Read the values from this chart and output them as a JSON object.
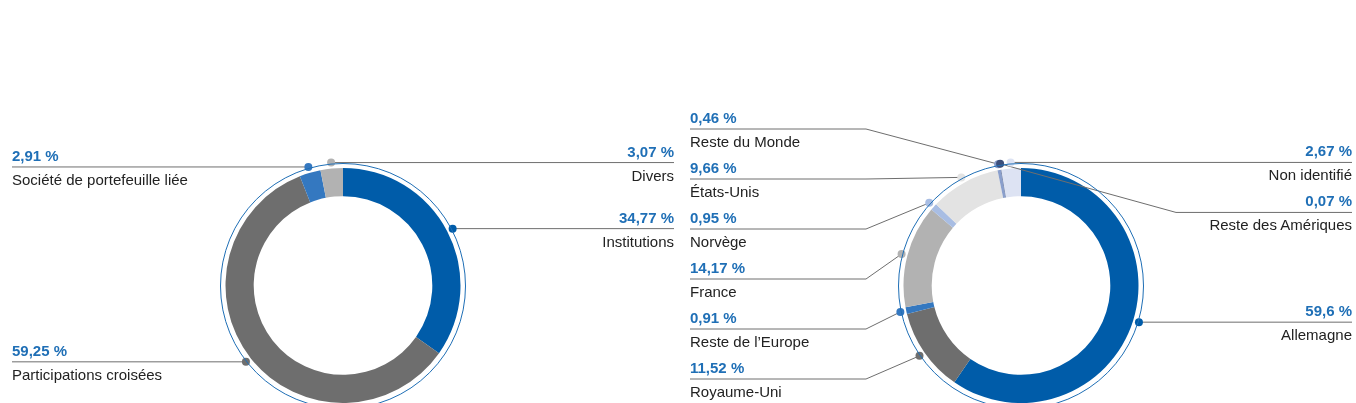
{
  "chart_data": [
    {
      "type": "donut",
      "categories": [
        "Institutions",
        "Participations croisées",
        "Société de portefeuille liée",
        "Divers"
      ],
      "values": [
        34.77,
        59.25,
        2.91,
        3.07
      ],
      "value_labels": [
        "34,77 %",
        "59,25 %",
        "2,91 %",
        "3,07 %"
      ],
      "colors": [
        "#005ca9",
        "#6e6e6e",
        "#3478c0",
        "#b2b2b2"
      ],
      "legend": false
    },
    {
      "type": "donut",
      "categories": [
        "Allemagne",
        "Royaume-Uni",
        "Reste de l’Europe",
        "France",
        "Norvège",
        "États-Unis",
        "Reste du Monde",
        "Reste des Amériques",
        "Non identifié"
      ],
      "values": [
        59.6,
        11.52,
        0.91,
        14.17,
        0.95,
        9.66,
        0.46,
        0.07,
        2.67
      ],
      "value_labels": [
        "59,6 %",
        "11,52 %",
        "0,91 %",
        "14,17 %",
        "0,95 %",
        "9,66 %",
        "0,46 %",
        "0,07 %",
        "2,67 %"
      ],
      "colors": [
        "#005ca9",
        "#6e6e6e",
        "#3478c0",
        "#b2b2b2",
        "#a8bde3",
        "#e3e3e3",
        "#8a9fcc",
        "#3d4f7a",
        "#dde3f3"
      ],
      "legend": false
    }
  ]
}
